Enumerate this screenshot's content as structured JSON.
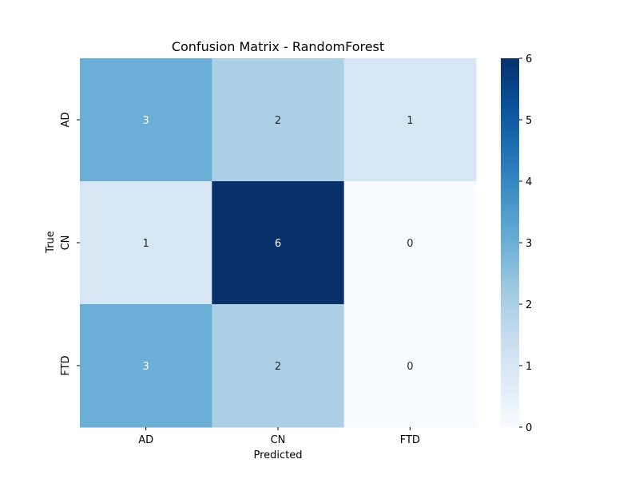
{
  "chart_data": {
    "type": "heatmap",
    "title": "Confusion Matrix - RandomForest",
    "xlabel": "Predicted",
    "ylabel": "True",
    "x_categories": [
      "AD",
      "CN",
      "FTD"
    ],
    "y_categories": [
      "AD",
      "CN",
      "FTD"
    ],
    "values": [
      [
        3,
        2,
        1
      ],
      [
        1,
        6,
        0
      ],
      [
        3,
        2,
        0
      ]
    ],
    "colormap": "Blues",
    "colors": {
      "low": "#f7fbff",
      "high": "#08306b",
      "annotation_dark": "#262626",
      "annotation_light": "#ffffff"
    },
    "colorbar": {
      "range": [
        0,
        6
      ],
      "ticks": [
        "0",
        "1",
        "2",
        "3",
        "4",
        "5",
        "6"
      ]
    }
  }
}
